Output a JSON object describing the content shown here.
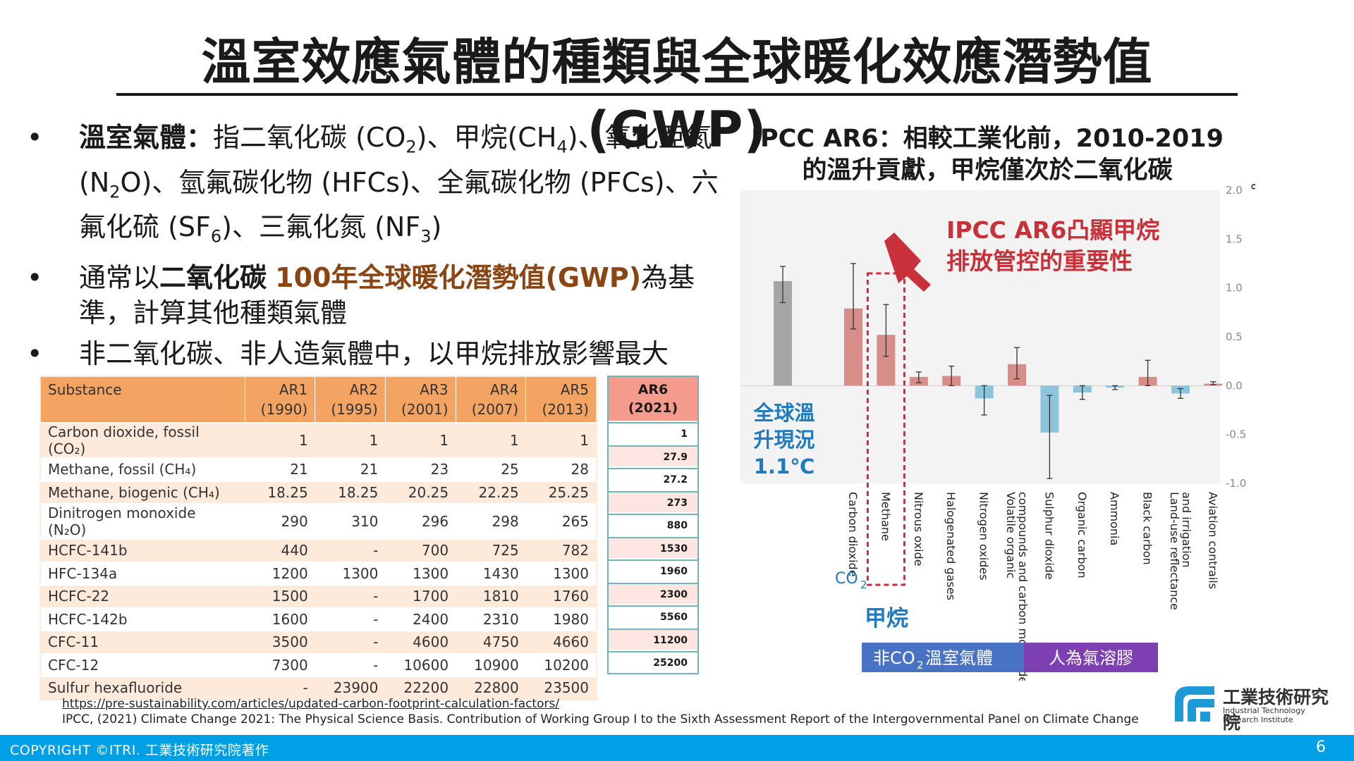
{
  "slide": {
    "title": "溫室效應氣體的種類與全球暖化效應潛勢值(GWP)",
    "page_number": "6",
    "copyright": "COPYRIGHT ©ITRI. 工業技術研究院著作"
  },
  "bullets": {
    "b1": {
      "label": "溫室氣體：",
      "t1": "指二氧化碳 (CO",
      "s1": "2",
      "t2": ")、甲烷(CH",
      "s2": "4",
      "t3": ")、氧化亞氮(N",
      "s3": "2",
      "t4": "O)、氫氟碳化物 (HFCs)、全氟碳化物 (PFCs)、六氟化硫 (SF",
      "s4": "6",
      "t5": ")、三氟化氮 (NF",
      "s5": "3",
      "t6": ")"
    },
    "b2": {
      "pre": "通常以",
      "bold": "二氧化碳",
      "space": " ",
      "brown": "100年全球暖化潛勢值(GWP)",
      "post": "為基準，計算其他種類氣體"
    },
    "b3": "非二氧化碳、非人造氣體中，以甲烷排放影響最大"
  },
  "gwp_table": {
    "headers": [
      "Substance",
      "AR1 (1990)",
      "AR2 (1995)",
      "AR3 (2001)",
      "AR4 (2007)",
      "AR5 (2013)"
    ],
    "rows": [
      [
        "Carbon dioxide, fossil (CO₂)",
        "1",
        "1",
        "1",
        "1",
        "1"
      ],
      [
        "Methane, fossil (CH₄)",
        "21",
        "21",
        "23",
        "25",
        "28"
      ],
      [
        "Methane, biogenic (CH₄)",
        "18.25",
        "18.25",
        "20.25",
        "22.25",
        "25.25"
      ],
      [
        "Dinitrogen monoxide (N₂O)",
        "290",
        "310",
        "296",
        "298",
        "265"
      ],
      [
        "HCFC-141b",
        "440",
        "-",
        "700",
        "725",
        "782"
      ],
      [
        "HFC-134a",
        "1200",
        "1300",
        "1300",
        "1430",
        "1300"
      ],
      [
        "HCFC-22",
        "1500",
        "-",
        "1700",
        "1810",
        "1760"
      ],
      [
        "HCFC-142b",
        "1600",
        "-",
        "2400",
        "2310",
        "1980"
      ],
      [
        "CFC-11",
        "3500",
        "-",
        "4600",
        "4750",
        "4660"
      ],
      [
        "CFC-12",
        "7300",
        "-",
        "10600",
        "10900",
        "10200"
      ],
      [
        "Sulfur hexafluoride",
        "-",
        "23900",
        "22200",
        "22800",
        "23500"
      ]
    ]
  },
  "ar6_column": {
    "header_line1": "AR6",
    "header_line2": "(2021)",
    "values": [
      "1",
      "27.9",
      "27.2",
      "273",
      "880",
      "1530",
      "1960",
      "2300",
      "5560",
      "11200",
      "25200"
    ]
  },
  "chart_title": {
    "line1": "IPCC AR6：相較工業化前，2010-2019",
    "line2": "的溫升貢獻，甲烷僅次於二氧化碳"
  },
  "chart_data": {
    "type": "bar",
    "unit": "℃",
    "ylim": [
      -1.0,
      2.0
    ],
    "yticks": [
      "2.0",
      "1.5",
      "1.0",
      "0.5",
      "0.0",
      "-0.5",
      "-1.0"
    ],
    "ytick_values": [
      2.0,
      1.5,
      1.0,
      0.5,
      0.0,
      -0.5,
      -1.0
    ],
    "observed": {
      "value": 1.07,
      "err_low": 0.85,
      "err_high": 1.22
    },
    "categories": [
      "Carbon dioxide",
      "Methane",
      "Nitrous oxide",
      "Halogenated gases",
      "Nitrogen oxides",
      "Volatile organic compounds and carbon monoxide",
      "Sulphur dioxide",
      "Organic carbon",
      "Ammonia",
      "Black carbon",
      "Land-use reflectance and irrigation",
      "Aviation contrails"
    ],
    "values": [
      0.79,
      0.52,
      0.09,
      0.1,
      -0.13,
      0.22,
      -0.48,
      -0.07,
      -0.02,
      0.09,
      -0.08,
      0.02
    ],
    "err_low": [
      0.58,
      0.3,
      0.03,
      0.0,
      -0.3,
      0.07,
      -0.95,
      -0.14,
      -0.04,
      0.0,
      -0.13,
      0.01
    ],
    "err_high": [
      1.25,
      0.83,
      0.14,
      0.2,
      0.0,
      0.39,
      -0.1,
      0.0,
      0.0,
      0.26,
      -0.03,
      0.04
    ],
    "colors": {
      "observed": "#A6A6A6",
      "positive": "#D88E88",
      "negative": "#8CC3DD",
      "highlight_box": "#D7263D",
      "arrow": "#C8303A",
      "annot": "#C8303A",
      "global": "#1F7BC1",
      "group_ghg": "#4873C4",
      "group_aerosol": "#7E3FB2"
    },
    "annotation": {
      "line1": "IPCC AR6凸顯甲烷",
      "line2": "排放管控的重要性"
    },
    "global_label": {
      "line1": "全球溫",
      "line2": "升現況",
      "value": "1.1℃"
    },
    "co2_label": "CO",
    "co2_sub": "2",
    "methane_label": "甲烷",
    "groups": {
      "ghg_pre": "非CO",
      "ghg_sub": "2",
      "ghg_post": "溫室氣體",
      "aerosol": "人為氣溶膠"
    }
  },
  "references": {
    "r1": "https://pre-sustainability.com/articles/updated-carbon-footprint-calculation-factors/",
    "r2": "IPCC, (2021) Climate Change 2021: The Physical Science Basis. Contribution of Working Group I to the Sixth Assessment Report of the Intergovernmental Panel on Climate Change"
  },
  "logo": {
    "zh": "工業技術研究院",
    "en1": "Industrial Technology",
    "en2": "Research Institute"
  }
}
